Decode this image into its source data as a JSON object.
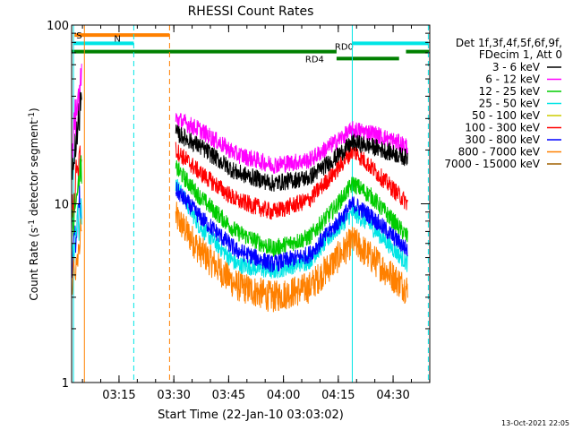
{
  "chart_data": {
    "type": "line",
    "title": "RHESSI Count Rates",
    "xlabel": "Start Time (22-Jan-10 03:03:02)",
    "ylabel_prefix": "Count Rate (s",
    "ylabel_sup1": "-1",
    "ylabel_mid": " detector segment",
    "ylabel_sup2": "-1",
    "ylabel_suffix": ")",
    "y_scale": "log",
    "x_unit": "minutes after 03:03:02",
    "xlim": [
      0,
      98
    ],
    "ylim": [
      1,
      100
    ],
    "x_ticks": [
      {
        "t": 12.97,
        "label": "03:15"
      },
      {
        "t": 27.97,
        "label": "03:30"
      },
      {
        "t": 42.97,
        "label": "03:45"
      },
      {
        "t": 57.97,
        "label": "04:00"
      },
      {
        "t": 72.97,
        "label": "04:15"
      },
      {
        "t": 87.97,
        "label": "04:30"
      }
    ],
    "y_ticks": [
      {
        "v": 1,
        "label": "1"
      },
      {
        "v": 10,
        "label": "10"
      },
      {
        "v": 100,
        "label": "100"
      }
    ],
    "legend": {
      "placement": "right",
      "header": [
        "Det 1f,3f,4f,5f,6f,9f,",
        "FDecim 1, Att 0"
      ],
      "entries": [
        {
          "label": "3 - 6 keV",
          "color": "#000000"
        },
        {
          "label": "6 - 12 keV",
          "color": "#ff00ff"
        },
        {
          "label": "12 - 25 keV",
          "color": "#00cc00"
        },
        {
          "label": "25 - 50 keV",
          "color": "#00e5e5"
        },
        {
          "label": "50 - 100 keV",
          "color": "#cccc00"
        },
        {
          "label": "100 - 300 keV",
          "color": "#ff0000"
        },
        {
          "label": "300 - 800 keV",
          "color": "#0000ff"
        },
        {
          "label": "800 - 7000 keV",
          "color": "#ff8000"
        },
        {
          "label": "7000 - 15000 keV",
          "color": "#a06000"
        }
      ]
    },
    "series_approx": [
      {
        "band": "6 - 12 keV",
        "color": "#ff00ff",
        "t": [
          28.5,
          35,
          45,
          55,
          65,
          72,
          77,
          82,
          92
        ],
        "values": [
          30,
          26,
          19,
          16.5,
          17.5,
          22,
          26,
          25,
          21
        ]
      },
      {
        "band": "3 - 6 keV",
        "color": "#000000",
        "t": [
          28.5,
          35,
          45,
          55,
          65,
          72,
          77,
          82,
          92
        ],
        "values": [
          25,
          21,
          15,
          13,
          14,
          18,
          22,
          21,
          18
        ]
      },
      {
        "band": "100 - 300 keV",
        "color": "#ff0000",
        "t": [
          28.5,
          35,
          45,
          55,
          65,
          72,
          77,
          82,
          92
        ],
        "values": [
          20,
          15,
          10.5,
          9,
          10.5,
          15,
          20,
          16,
          10
        ]
      },
      {
        "band": "12 - 25 keV",
        "color": "#00cc00",
        "t": [
          28.5,
          35,
          45,
          55,
          65,
          72,
          77,
          82,
          92
        ],
        "values": [
          16,
          11,
          7,
          5.6,
          6.5,
          9.5,
          13,
          11,
          6.5
        ]
      },
      {
        "band": "300 - 800 keV",
        "color": "#0000ff",
        "t": [
          28.5,
          35,
          45,
          55,
          65,
          72,
          77,
          82,
          92
        ],
        "values": [
          12,
          8.5,
          5.5,
          4.6,
          5.2,
          7.5,
          10,
          8.5,
          5.5
        ]
      },
      {
        "band": "25 - 50 keV",
        "color": "#00e5e5",
        "t": [
          28.5,
          35,
          45,
          55,
          65,
          72,
          77,
          82,
          92
        ],
        "values": [
          13,
          7.5,
          4.6,
          4.2,
          4.8,
          7,
          9,
          7.5,
          4.6
        ]
      },
      {
        "band": "800 - 7000 keV",
        "color": "#ff8000",
        "t": [
          28.5,
          35,
          45,
          55,
          65,
          72,
          77,
          82,
          92
        ],
        "values": [
          8.5,
          5.5,
          3.5,
          3,
          3.4,
          4.8,
          6.2,
          5,
          3.3
        ]
      }
    ],
    "early_segment": {
      "t_start": 0.2,
      "t_end": 2.8,
      "note_color": "#ff0000"
    },
    "flag_bars": [
      {
        "label": "S",
        "color": "#ff8000",
        "t_start": 0.8,
        "t_end": 26.8,
        "value": 88
      },
      {
        "label": "N",
        "color": "#00e5e5",
        "t_start": 0.4,
        "t_end": 17.0,
        "value": 79
      },
      {
        "label": "",
        "color": "#00e5e5",
        "t_start": 76.8,
        "t_end": 97.6,
        "value": 79
      },
      {
        "label": "RD0",
        "color": "#008000",
        "t_start": 0,
        "t_end": 72.5,
        "value": 71
      },
      {
        "label": "",
        "color": "#008000",
        "t_start": 91.5,
        "t_end": 97.8,
        "value": 71
      },
      {
        "label": "RD4",
        "color": "#008000",
        "t_start": 72.5,
        "t_end": 89.6,
        "value": 65
      }
    ],
    "vertical_lines": [
      {
        "t": 0.5,
        "color": "#00e5e5",
        "style": "solid"
      },
      {
        "t": 3.5,
        "color": "#ff8000",
        "style": "solid"
      },
      {
        "t": 17.0,
        "color": "#00e5e5",
        "style": "dashed"
      },
      {
        "t": 26.8,
        "color": "#ff8000",
        "style": "dashed"
      },
      {
        "t": 76.8,
        "color": "#00e5e5",
        "style": "solid"
      },
      {
        "t": 97.6,
        "color": "#00e5e5",
        "style": "dashed"
      }
    ],
    "timestamp": "13-Oct-2021 22:05"
  }
}
